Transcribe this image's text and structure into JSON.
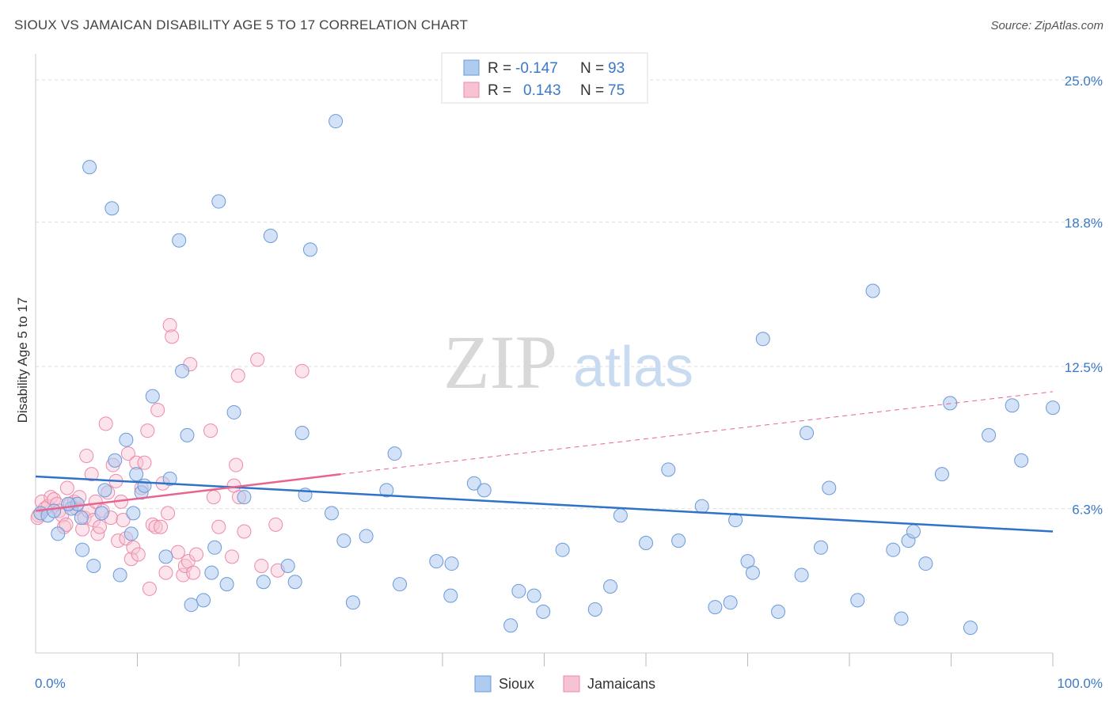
{
  "title": "SIOUX VS JAMAICAN DISABILITY AGE 5 TO 17 CORRELATION CHART",
  "source": "Source: ZipAtlas.com",
  "watermark": {
    "zip": "ZIP",
    "atlas": "atlas"
  },
  "colors": {
    "sioux_fill": "#aecbf0",
    "sioux_stroke": "#6b9ad8",
    "sioux_line": "#2f73c9",
    "jam_fill": "#f7c3d2",
    "jam_stroke": "#ee8aa8",
    "jam_line": "#e8648f",
    "grid": "#dddddd",
    "tick_text": "#3a78c8"
  },
  "legend": {
    "r_label": "R =",
    "n_label": "N =",
    "sioux": {
      "r": "-0.147",
      "n": "93"
    },
    "jamaicans": {
      "r": "0.143",
      "n": "75"
    }
  },
  "chart_data": {
    "type": "scatter",
    "title": "SIOUX VS JAMAICAN DISABILITY AGE 5 TO 17 CORRELATION CHART",
    "xlabel": "",
    "ylabel": "Disability Age 5 to 17",
    "xlim": [
      0,
      100
    ],
    "ylim": [
      0,
      25.9
    ],
    "x_tick_labels": [
      "0.0%",
      "100.0%"
    ],
    "y_ticks": [
      6.3,
      12.5,
      18.8,
      25.0
    ],
    "y_tick_labels": [
      "6.3%",
      "12.5%",
      "18.8%",
      "25.0%"
    ],
    "legend_position": "top-center",
    "grid": true,
    "series": [
      {
        "name": "Sioux",
        "trend": {
          "x": [
            0,
            100
          ],
          "y": [
            7.7,
            5.3
          ]
        },
        "points": [
          [
            0.5,
            6.1
          ],
          [
            1.2,
            6.0
          ],
          [
            1.8,
            6.2
          ],
          [
            2.2,
            5.2
          ],
          [
            3.5,
            6.3
          ],
          [
            4.1,
            6.5
          ],
          [
            4.5,
            5.9
          ],
          [
            4.6,
            4.5
          ],
          [
            5.3,
            21.2
          ],
          [
            5.7,
            3.8
          ],
          [
            6.5,
            6.1
          ],
          [
            6.8,
            7.1
          ],
          [
            7.5,
            19.4
          ],
          [
            7.8,
            8.4
          ],
          [
            8.3,
            3.4
          ],
          [
            8.9,
            9.3
          ],
          [
            9.4,
            5.2
          ],
          [
            9.9,
            7.8
          ],
          [
            10.4,
            7.0
          ],
          [
            10.7,
            7.3
          ],
          [
            11.5,
            11.2
          ],
          [
            12.8,
            4.2
          ],
          [
            13.2,
            7.6
          ],
          [
            14.1,
            18.0
          ],
          [
            14.4,
            12.3
          ],
          [
            14.9,
            9.5
          ],
          [
            15.3,
            2.1
          ],
          [
            16.5,
            2.3
          ],
          [
            17.3,
            3.5
          ],
          [
            17.6,
            4.6
          ],
          [
            18.0,
            19.7
          ],
          [
            18.8,
            3.0
          ],
          [
            19.5,
            10.5
          ],
          [
            20.5,
            6.8
          ],
          [
            22.4,
            3.1
          ],
          [
            23.1,
            18.2
          ],
          [
            24.8,
            3.8
          ],
          [
            25.5,
            3.1
          ],
          [
            26.2,
            9.6
          ],
          [
            26.5,
            6.9
          ],
          [
            27.0,
            17.6
          ],
          [
            29.1,
            6.1
          ],
          [
            30.3,
            4.9
          ],
          [
            31.2,
            2.2
          ],
          [
            32.5,
            5.1
          ],
          [
            34.5,
            7.1
          ],
          [
            35.3,
            8.7
          ],
          [
            35.8,
            3.0
          ],
          [
            39.4,
            4.0
          ],
          [
            40.8,
            2.5
          ],
          [
            40.9,
            3.9
          ],
          [
            43.1,
            7.4
          ],
          [
            44.1,
            7.1
          ],
          [
            46.7,
            1.2
          ],
          [
            47.5,
            2.7
          ],
          [
            49.0,
            2.5
          ],
          [
            49.9,
            1.8
          ],
          [
            51.8,
            4.5
          ],
          [
            55.0,
            1.9
          ],
          [
            56.5,
            2.9
          ],
          [
            57.5,
            6.0
          ],
          [
            60.0,
            4.8
          ],
          [
            62.2,
            8.0
          ],
          [
            63.2,
            4.9
          ],
          [
            65.5,
            6.4
          ],
          [
            66.8,
            2.0
          ],
          [
            68.3,
            2.2
          ],
          [
            68.8,
            5.8
          ],
          [
            70.0,
            4.0
          ],
          [
            70.5,
            3.5
          ],
          [
            71.5,
            13.7
          ],
          [
            73.0,
            1.8
          ],
          [
            75.3,
            3.4
          ],
          [
            75.8,
            9.6
          ],
          [
            77.2,
            4.6
          ],
          [
            78.0,
            7.2
          ],
          [
            80.8,
            2.3
          ],
          [
            82.3,
            15.8
          ],
          [
            84.3,
            4.5
          ],
          [
            85.1,
            1.5
          ],
          [
            85.8,
            4.9
          ],
          [
            86.3,
            5.3
          ],
          [
            87.5,
            3.9
          ],
          [
            89.1,
            7.8
          ],
          [
            89.9,
            10.9
          ],
          [
            91.9,
            1.1
          ],
          [
            93.7,
            9.5
          ],
          [
            96.0,
            10.8
          ],
          [
            96.9,
            8.4
          ],
          [
            100.0,
            10.7
          ],
          [
            29.5,
            23.2
          ],
          [
            3.2,
            6.5
          ],
          [
            9.6,
            6.1
          ]
        ]
      },
      {
        "name": "Jamaicans",
        "trend": {
          "x": [
            0,
            30
          ],
          "y": [
            6.2,
            7.8
          ]
        },
        "trend_dashed": {
          "x": [
            30,
            100
          ],
          "y": [
            7.8,
            11.4
          ]
        },
        "points": [
          [
            0.3,
            6.0
          ],
          [
            0.6,
            6.6
          ],
          [
            0.9,
            6.3
          ],
          [
            1.2,
            6.4
          ],
          [
            1.5,
            6.8
          ],
          [
            1.8,
            6.7
          ],
          [
            2.1,
            6.5
          ],
          [
            2.3,
            6.2
          ],
          [
            2.6,
            6.0
          ],
          [
            2.8,
            5.5
          ],
          [
            3.0,
            5.6
          ],
          [
            3.1,
            7.2
          ],
          [
            3.4,
            6.5
          ],
          [
            3.8,
            6.6
          ],
          [
            4.0,
            6.3
          ],
          [
            4.3,
            6.8
          ],
          [
            4.6,
            5.4
          ],
          [
            4.8,
            5.9
          ],
          [
            5.0,
            8.6
          ],
          [
            5.2,
            6.2
          ],
          [
            5.5,
            7.8
          ],
          [
            5.7,
            5.8
          ],
          [
            5.9,
            6.6
          ],
          [
            6.1,
            5.2
          ],
          [
            6.3,
            5.5
          ],
          [
            6.6,
            6.2
          ],
          [
            6.9,
            10.0
          ],
          [
            7.1,
            7.0
          ],
          [
            7.4,
            5.9
          ],
          [
            7.6,
            8.2
          ],
          [
            7.9,
            7.5
          ],
          [
            8.1,
            4.9
          ],
          [
            8.4,
            6.6
          ],
          [
            8.6,
            5.8
          ],
          [
            8.9,
            5.0
          ],
          [
            9.1,
            8.7
          ],
          [
            9.4,
            4.1
          ],
          [
            9.6,
            4.6
          ],
          [
            9.9,
            8.3
          ],
          [
            10.1,
            4.3
          ],
          [
            10.4,
            7.2
          ],
          [
            10.7,
            8.3
          ],
          [
            11.0,
            9.7
          ],
          [
            11.2,
            2.8
          ],
          [
            11.5,
            5.6
          ],
          [
            11.8,
            5.5
          ],
          [
            12.0,
            10.6
          ],
          [
            12.3,
            5.5
          ],
          [
            12.5,
            7.4
          ],
          [
            12.8,
            3.5
          ],
          [
            13.0,
            6.1
          ],
          [
            13.2,
            14.3
          ],
          [
            13.4,
            13.8
          ],
          [
            14.0,
            4.4
          ],
          [
            14.5,
            3.4
          ],
          [
            14.7,
            3.8
          ],
          [
            15.0,
            4.0
          ],
          [
            15.2,
            12.6
          ],
          [
            15.5,
            3.5
          ],
          [
            15.8,
            4.3
          ],
          [
            17.2,
            9.7
          ],
          [
            17.5,
            6.8
          ],
          [
            18.0,
            5.5
          ],
          [
            19.3,
            4.2
          ],
          [
            19.5,
            7.3
          ],
          [
            19.7,
            8.2
          ],
          [
            19.9,
            12.1
          ],
          [
            20.0,
            6.8
          ],
          [
            20.5,
            5.3
          ],
          [
            21.8,
            12.8
          ],
          [
            22.2,
            3.8
          ],
          [
            23.6,
            5.6
          ],
          [
            23.8,
            3.6
          ],
          [
            26.2,
            12.3
          ],
          [
            0.2,
            5.9
          ]
        ]
      }
    ]
  }
}
